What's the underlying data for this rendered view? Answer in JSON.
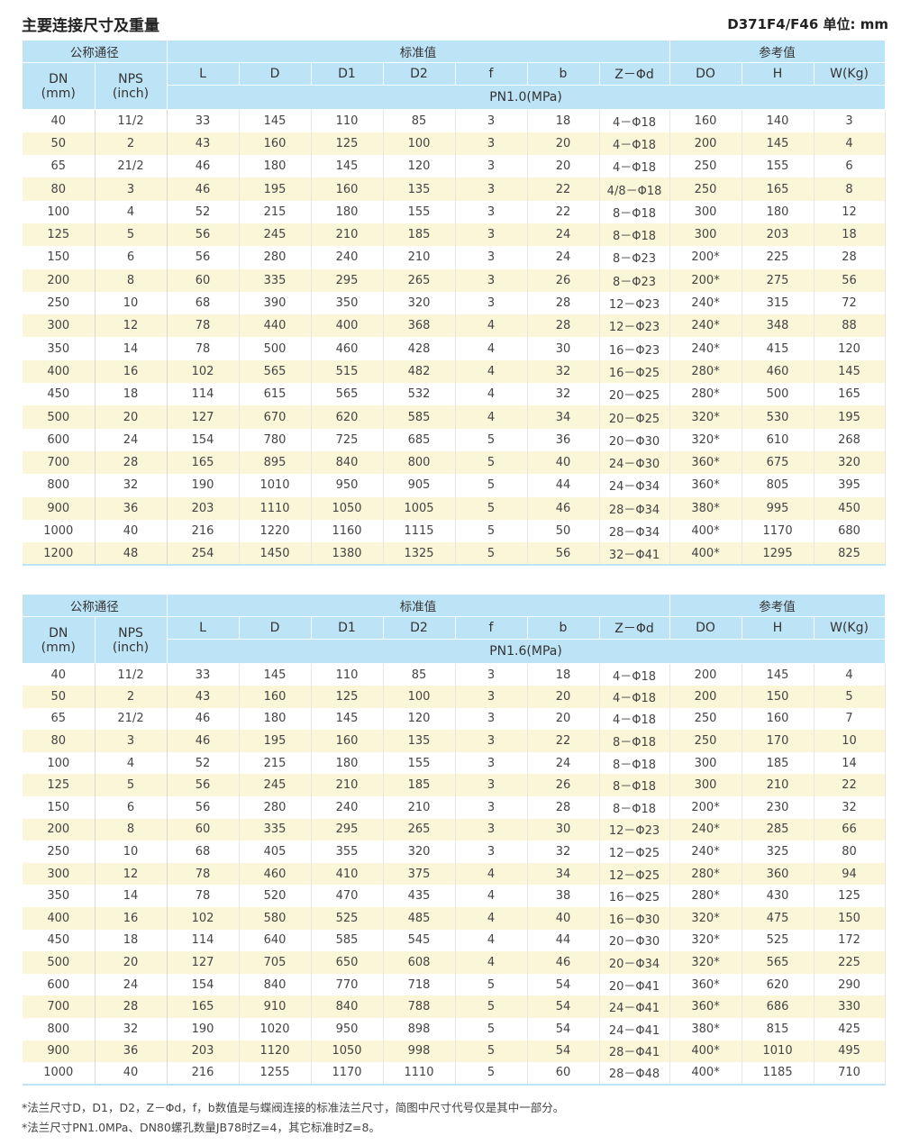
{
  "header": {
    "title": "主要连接尺寸及重量",
    "model": "D371F4/F46 单位: mm"
  },
  "groups": {
    "nominal": "公称通径",
    "standard": "标准值",
    "reference": "参考值"
  },
  "columns": {
    "dn": "DN\n(mm)",
    "nps": "NPS\n(inch)",
    "L": "L",
    "D": "D",
    "D1": "D1",
    "D2": "D2",
    "f": "f",
    "b": "b",
    "zd": "Z－Φd",
    "DO": "DO",
    "H": "H",
    "W": "W(Kg)"
  },
  "table1": {
    "pressure": "PN1.0(MPa)",
    "rows": [
      [
        "40",
        "11/2",
        "33",
        "145",
        "110",
        "85",
        "3",
        "18",
        "4－Φ18",
        "160",
        "140",
        "3"
      ],
      [
        "50",
        "2",
        "43",
        "160",
        "125",
        "100",
        "3",
        "20",
        "4－Φ18",
        "200",
        "145",
        "4"
      ],
      [
        "65",
        "21/2",
        "46",
        "180",
        "145",
        "120",
        "3",
        "20",
        "4－Φ18",
        "250",
        "155",
        "6"
      ],
      [
        "80",
        "3",
        "46",
        "195",
        "160",
        "135",
        "3",
        "22",
        "4/8－Φ18",
        "250",
        "165",
        "8"
      ],
      [
        "100",
        "4",
        "52",
        "215",
        "180",
        "155",
        "3",
        "22",
        "8－Φ18",
        "300",
        "180",
        "12"
      ],
      [
        "125",
        "5",
        "56",
        "245",
        "210",
        "185",
        "3",
        "24",
        "8－Φ18",
        "300",
        "203",
        "18"
      ],
      [
        "150",
        "6",
        "56",
        "280",
        "240",
        "210",
        "3",
        "24",
        "8－Φ23",
        "200*",
        "225",
        "28"
      ],
      [
        "200",
        "8",
        "60",
        "335",
        "295",
        "265",
        "3",
        "26",
        "8－Φ23",
        "200*",
        "275",
        "56"
      ],
      [
        "250",
        "10",
        "68",
        "390",
        "350",
        "320",
        "3",
        "28",
        "12－Φ23",
        "240*",
        "315",
        "72"
      ],
      [
        "300",
        "12",
        "78",
        "440",
        "400",
        "368",
        "4",
        "28",
        "12－Φ23",
        "240*",
        "348",
        "88"
      ],
      [
        "350",
        "14",
        "78",
        "500",
        "460",
        "428",
        "4",
        "30",
        "16－Φ23",
        "240*",
        "415",
        "120"
      ],
      [
        "400",
        "16",
        "102",
        "565",
        "515",
        "482",
        "4",
        "32",
        "16－Φ25",
        "280*",
        "460",
        "145"
      ],
      [
        "450",
        "18",
        "114",
        "615",
        "565",
        "532",
        "4",
        "32",
        "20－Φ25",
        "280*",
        "500",
        "165"
      ],
      [
        "500",
        "20",
        "127",
        "670",
        "620",
        "585",
        "4",
        "34",
        "20－Φ25",
        "320*",
        "530",
        "195"
      ],
      [
        "600",
        "24",
        "154",
        "780",
        "725",
        "685",
        "5",
        "36",
        "20－Φ30",
        "320*",
        "610",
        "268"
      ],
      [
        "700",
        "28",
        "165",
        "895",
        "840",
        "800",
        "5",
        "40",
        "24－Φ30",
        "360*",
        "675",
        "320"
      ],
      [
        "800",
        "32",
        "190",
        "1010",
        "950",
        "905",
        "5",
        "44",
        "24－Φ34",
        "360*",
        "805",
        "395"
      ],
      [
        "900",
        "36",
        "203",
        "1110",
        "1050",
        "1005",
        "5",
        "46",
        "28－Φ34",
        "380*",
        "995",
        "450"
      ],
      [
        "1000",
        "40",
        "216",
        "1220",
        "1160",
        "1115",
        "5",
        "50",
        "28－Φ34",
        "400*",
        "1170",
        "680"
      ],
      [
        "1200",
        "48",
        "254",
        "1450",
        "1380",
        "1325",
        "5",
        "56",
        "32－Φ41",
        "400*",
        "1295",
        "825"
      ]
    ]
  },
  "table2": {
    "pressure": "PN1.6(MPa)",
    "rows": [
      [
        "40",
        "11/2",
        "33",
        "145",
        "110",
        "85",
        "3",
        "18",
        "4－Φ18",
        "200",
        "145",
        "4"
      ],
      [
        "50",
        "2",
        "43",
        "160",
        "125",
        "100",
        "3",
        "20",
        "4－Φ18",
        "200",
        "150",
        "5"
      ],
      [
        "65",
        "21/2",
        "46",
        "180",
        "145",
        "120",
        "3",
        "20",
        "4－Φ18",
        "250",
        "160",
        "7"
      ],
      [
        "80",
        "3",
        "46",
        "195",
        "160",
        "135",
        "3",
        "22",
        "8－Φ18",
        "250",
        "170",
        "10"
      ],
      [
        "100",
        "4",
        "52",
        "215",
        "180",
        "155",
        "3",
        "24",
        "8－Φ18",
        "300",
        "185",
        "14"
      ],
      [
        "125",
        "5",
        "56",
        "245",
        "210",
        "185",
        "3",
        "26",
        "8－Φ18",
        "300",
        "210",
        "22"
      ],
      [
        "150",
        "6",
        "56",
        "280",
        "240",
        "210",
        "3",
        "28",
        "8－Φ18",
        "200*",
        "230",
        "32"
      ],
      [
        "200",
        "8",
        "60",
        "335",
        "295",
        "265",
        "3",
        "30",
        "12－Φ23",
        "240*",
        "285",
        "66"
      ],
      [
        "250",
        "10",
        "68",
        "405",
        "355",
        "320",
        "3",
        "32",
        "12－Φ25",
        "240*",
        "325",
        "80"
      ],
      [
        "300",
        "12",
        "78",
        "460",
        "410",
        "375",
        "4",
        "34",
        "12－Φ25",
        "280*",
        "360",
        "94"
      ],
      [
        "350",
        "14",
        "78",
        "520",
        "470",
        "435",
        "4",
        "38",
        "16－Φ25",
        "280*",
        "430",
        "125"
      ],
      [
        "400",
        "16",
        "102",
        "580",
        "525",
        "485",
        "4",
        "40",
        "16－Φ30",
        "320*",
        "475",
        "150"
      ],
      [
        "450",
        "18",
        "114",
        "640",
        "585",
        "545",
        "4",
        "44",
        "20－Φ30",
        "320*",
        "525",
        "172"
      ],
      [
        "500",
        "20",
        "127",
        "705",
        "650",
        "608",
        "4",
        "46",
        "20－Φ34",
        "320*",
        "565",
        "225"
      ],
      [
        "600",
        "24",
        "154",
        "840",
        "770",
        "718",
        "5",
        "54",
        "20－Φ41",
        "360*",
        "620",
        "290"
      ],
      [
        "700",
        "28",
        "165",
        "910",
        "840",
        "788",
        "5",
        "54",
        "24－Φ41",
        "360*",
        "686",
        "330"
      ],
      [
        "800",
        "32",
        "190",
        "1020",
        "950",
        "898",
        "5",
        "54",
        "24－Φ41",
        "380*",
        "815",
        "425"
      ],
      [
        "900",
        "36",
        "203",
        "1120",
        "1050",
        "998",
        "5",
        "54",
        "28－Φ41",
        "400*",
        "1010",
        "495"
      ],
      [
        "1000",
        "40",
        "216",
        "1255",
        "1170",
        "1110",
        "5",
        "60",
        "28－Φ48",
        "400*",
        "1185",
        "710"
      ]
    ]
  },
  "notes": [
    "*法兰尺寸D，D1，D2，Z－Φd，f，b数值是与蝶阀连接的标准法兰尺寸，简图中尺寸代号仅是其中一部分。",
    "*法兰尺寸PN1.0MPa、DN80螺孔数量JB78时Z=4，其它标准时Z=8。"
  ]
}
